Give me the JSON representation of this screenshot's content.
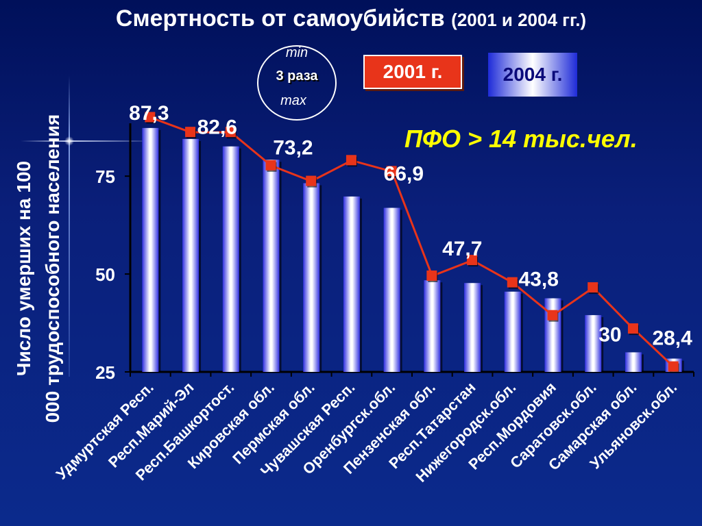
{
  "title": {
    "main": "Смертность от самоубийств",
    "sub": "(2001 и 2004 гг.)"
  },
  "ratio": {
    "min": "min",
    "value": "3 раза",
    "max": "max"
  },
  "legend": {
    "y2001": "2001 г.",
    "y2004": "2004 г."
  },
  "note": "ПФО > 14 тыс.чел.",
  "colors": {
    "background": "#0b1f7a",
    "series_2001": "#e8341a",
    "series_2004": "#3030e0",
    "note": "#ffff00"
  },
  "chart_data": {
    "type": "bar",
    "ylabel": "Число умерших на 100 000 трудоспособного населения",
    "ylim": [
      25,
      92
    ],
    "yticks": [
      25,
      50,
      75
    ],
    "categories": [
      "Удмуртская Респ.",
      "Респ.Марий-Эл",
      "Респ.Башкортост.",
      "Кировская обл.",
      "Пермская обл.",
      "Чувашская Респ.",
      "Оренбургск.обл.",
      "Пензенская обл.",
      "Респ.Татарстан",
      "Нижегородск.обл.",
      "Респ.Мордовия",
      "Саратовск.обл.",
      "Самарская обл.",
      "Ульяновск.обл."
    ],
    "series": [
      {
        "name": "2004 г.",
        "kind": "bar",
        "values": [
          87.3,
          84.5,
          82.6,
          79.2,
          73.2,
          69.8,
          66.9,
          48.4,
          47.7,
          45.5,
          43.8,
          39.5,
          30,
          28.4
        ]
      },
      {
        "name": "2001 г.",
        "kind": "line",
        "values": [
          90,
          86.2,
          86.2,
          77.7,
          73.7,
          79,
          76.2,
          49.5,
          53.5,
          47.8,
          39.4,
          46.5,
          36,
          26.3
        ]
      }
    ],
    "data_labels": [
      "87,3",
      "",
      "82,6",
      "",
      "73,2",
      "",
      "66,9",
      "",
      "47,7",
      "",
      "43,8",
      "",
      "30",
      "28,4"
    ],
    "grid": false,
    "legend_position": "top"
  }
}
